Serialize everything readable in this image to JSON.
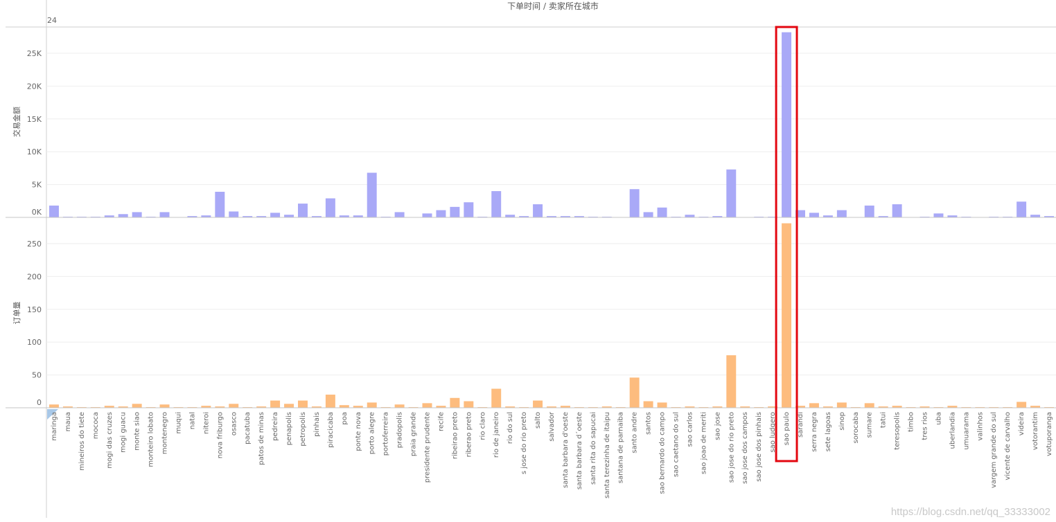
{
  "header": {
    "title": "下单时间 / 卖家所在城市",
    "year_label": "24"
  },
  "watermark": "https://blog.csdn.net/qq_33333002",
  "colors": {
    "top_bar": "#a9a9f7",
    "bottom_bar": "#fdbc7e",
    "highlight": "#e3060f",
    "grid": "#eeeeee",
    "axis": "#d0d0d0"
  },
  "chart_data": [
    {
      "type": "bar",
      "ylabel": "交易金额",
      "ylim": [
        0,
        29000
      ],
      "y_ticks": [
        0,
        5000,
        10000,
        15000,
        20000,
        25000
      ],
      "y_tick_labels": [
        "0K",
        "5K",
        "10K",
        "15K",
        "20K",
        "25K"
      ],
      "grid": true,
      "categories": [
        "maringa",
        "maua",
        "mineiros do tiete",
        "mococa",
        "mogi das cruzes",
        "mogi guacu",
        "monte siao",
        "monteiro lobato",
        "montenegro",
        "muqui",
        "natal",
        "niteroi",
        "nova friburgo",
        "osasco",
        "pacatuba",
        "patos de minas",
        "pedreira",
        "penapolis",
        "petropolis",
        "pinhais",
        "piracicaba",
        "poa",
        "ponte nova",
        "porto alegre",
        "portoferreira",
        "pradopolis",
        "praia grande",
        "presidente prudente",
        "recife",
        "ribeirao preto",
        "riberao preto",
        "rio claro",
        "rio de janeiro",
        "rio do sul",
        "s jose do rio preto",
        "salto",
        "salvador",
        "santa barbara d'oeste",
        "santa barbara d´oeste",
        "santa rita do sapucai",
        "santa terezinha de itaipu",
        "santana de parnaiba",
        "santo andre",
        "santos",
        "sao bernardo do campo",
        "sao caetano do sul",
        "sao carlos",
        "sao joao de meriti",
        "sao jose",
        "sao jose do rio preto",
        "sao jose dos campos",
        "sao jose dos pinhais",
        "sao ludgero",
        "sao paulo",
        "sarandi",
        "serra negra",
        "sete lagoas",
        "sinop",
        "sorocaba",
        "sumare",
        "tatui",
        "teresopolis",
        "timbo",
        "tres rios",
        "uba",
        "uberlandia",
        "umuarama",
        "valinhos",
        "vargem grande do sul",
        "vicente de carvalho",
        "videira",
        "votorantim",
        "votuporanga"
      ],
      "values": [
        1800,
        100,
        100,
        100,
        300,
        500,
        800,
        100,
        800,
        0,
        200,
        300,
        3900,
        900,
        200,
        200,
        700,
        400,
        2100,
        200,
        2900,
        300,
        300,
        6800,
        100,
        800,
        0,
        600,
        1100,
        1600,
        2300,
        100,
        4000,
        400,
        200,
        2000,
        200,
        200,
        200,
        100,
        100,
        0,
        4300,
        800,
        1500,
        100,
        400,
        100,
        200,
        7300,
        0,
        100,
        100,
        28200,
        1100,
        700,
        300,
        1100,
        0,
        1800,
        200,
        2000,
        0,
        100,
        600,
        300,
        100,
        0,
        100,
        100,
        2400,
        400,
        200
      ]
    },
    {
      "type": "bar",
      "ylabel": "订单量",
      "ylim": [
        0,
        290
      ],
      "y_ticks": [
        0,
        50,
        100,
        150,
        200,
        250
      ],
      "y_tick_labels": [
        "0",
        "50",
        "100",
        "150",
        "200",
        "250"
      ],
      "grid": true,
      "values": [
        5,
        2,
        1,
        1,
        3,
        2,
        6,
        1,
        5,
        1,
        1,
        3,
        2,
        6,
        1,
        2,
        11,
        6,
        11,
        2,
        20,
        4,
        3,
        8,
        1,
        5,
        1,
        7,
        3,
        15,
        10,
        1,
        29,
        2,
        1,
        11,
        2,
        3,
        1,
        1,
        2,
        1,
        46,
        10,
        8,
        1,
        2,
        1,
        2,
        80,
        2,
        1,
        2,
        281,
        3,
        7,
        2,
        8,
        1,
        7,
        2,
        3,
        1,
        2,
        1,
        3,
        1,
        1,
        1,
        1,
        9,
        3,
        1
      ]
    }
  ],
  "annotation": {
    "label": "highlight-box",
    "category": "sao paulo"
  }
}
